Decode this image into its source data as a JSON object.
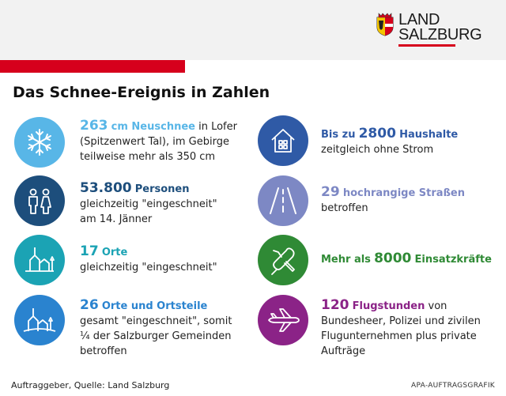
{
  "logo": {
    "line1": "LAND",
    "line2": "SALZBURG"
  },
  "title": "Das Schnee-Ereignis in Zahlen",
  "colors": {
    "brand_red": "#d6001c",
    "snow_light_blue": "#58b6e7",
    "dark_blue": "#1d4e7c",
    "teal": "#1ba3b4",
    "blue": "#2a83cf",
    "navy": "#2f5aa6",
    "slate_blue": "#7d88c4",
    "green": "#2f8a35",
    "purple": "#8b2387"
  },
  "items": [
    {
      "icon": "snowflake-icon",
      "color": "#58b6e7",
      "value": "263",
      "label": "cm Neuschnee",
      "text1": " in Lofer",
      "text2": "(Spitzenwert Tal), im Gebirge",
      "text3": "teilweise mehr als 350 cm"
    },
    {
      "icon": "people-icon",
      "color": "#1d4e7c",
      "value": "53.800",
      "label": "Personen",
      "text1": "gleichzeitig \"eingeschneit\"",
      "text2": "am 14. Jänner"
    },
    {
      "icon": "village-icon",
      "color": "#1ba3b4",
      "value": "17",
      "label": "Orte",
      "text1": "gleichzeitig \"eingeschneit\""
    },
    {
      "icon": "village-snow-icon",
      "color": "#2a83cf",
      "value": "26",
      "label": "Orte und Ortsteile",
      "text1": "gesamt \"eingeschneit\", somit",
      "text2": "¼ der Salzburger Gemeinden",
      "text3": "betroffen"
    },
    {
      "icon": "house-icon",
      "color": "#2f5aa6",
      "prefix": "Bis zu",
      "value": "2800",
      "label": "Haushalte",
      "text1": "zeitgleich ohne Strom"
    },
    {
      "icon": "road-icon",
      "color": "#7d88c4",
      "value": "29",
      "label": "hochrangige Straßen",
      "text1": "betroffen"
    },
    {
      "icon": "tools-icon",
      "color": "#2f8a35",
      "prefix": "Mehr als",
      "value": "8000",
      "label": "Einsatzkräfte"
    },
    {
      "icon": "airplane-icon",
      "color": "#8b2387",
      "value": "120",
      "label": "Flugstunden",
      "text1": " von",
      "text2": "Bundesheer, Polizei und zivilen",
      "text3": "Flugunternehmen plus private",
      "text4": "Aufträge"
    }
  ],
  "footer": {
    "source": "Auftraggeber, Quelle: Land Salzburg",
    "credit": "APA-AUFTRAGSGRAFIK"
  }
}
